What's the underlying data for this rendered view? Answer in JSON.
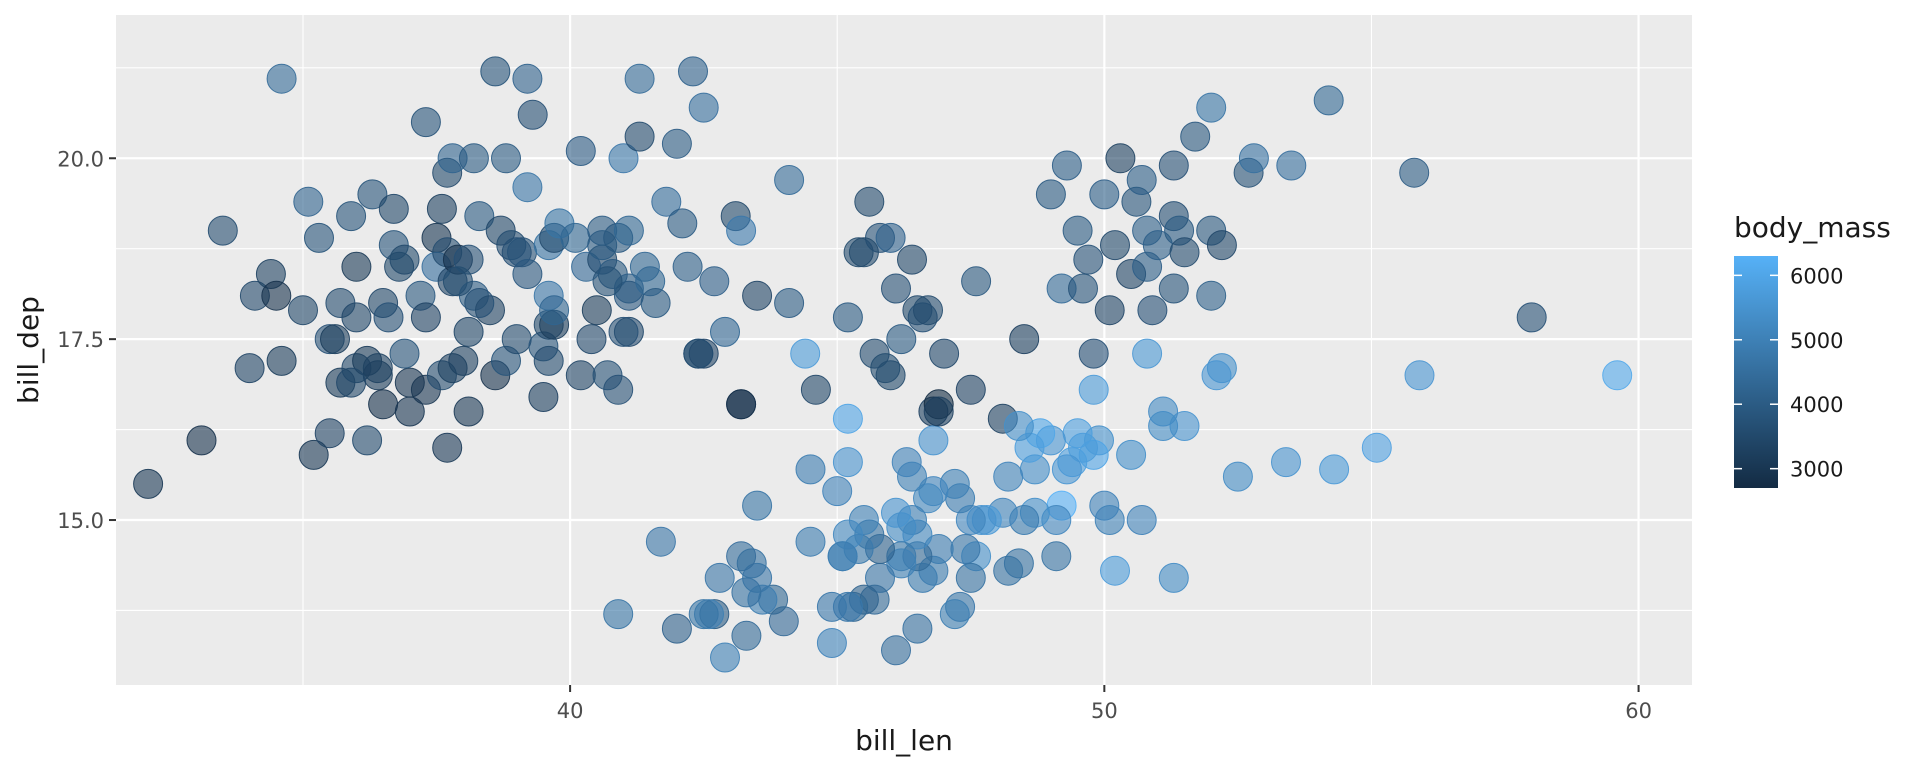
{
  "chart_data": {
    "type": "scatter",
    "xlabel": "bill_len",
    "ylabel": "bill_dep",
    "xlim": [
      31.5,
      61.0
    ],
    "ylim": [
      12.72,
      21.98
    ],
    "xticks": [
      40,
      50,
      60
    ],
    "yticks": [
      15.0,
      17.5,
      20.0
    ],
    "ytick_labels": [
      "15.0",
      "17.5",
      "20.0"
    ],
    "grid": true,
    "alpha": 0.6,
    "color_legend": {
      "title": "body_mass",
      "min": 2700,
      "max": 6300,
      "ticks": [
        3000,
        4000,
        5000,
        6000
      ],
      "low_color": "#132B43",
      "high_color": "#56B1F7",
      "placement": "right"
    },
    "points": [
      [
        32.1,
        15.5,
        3050
      ],
      [
        33.1,
        16.1,
        2900
      ],
      [
        33.5,
        19.0,
        3600
      ],
      [
        34.0,
        17.1,
        3400
      ],
      [
        34.1,
        18.1,
        3475
      ],
      [
        34.4,
        18.4,
        3325
      ],
      [
        34.5,
        18.1,
        2900
      ],
      [
        34.6,
        21.1,
        4400
      ],
      [
        34.6,
        17.2,
        3200
      ],
      [
        35.0,
        17.9,
        3450
      ],
      [
        35.1,
        19.4,
        4200
      ],
      [
        35.2,
        15.9,
        3050
      ],
      [
        35.3,
        18.9,
        3800
      ],
      [
        35.5,
        16.2,
        3350
      ],
      [
        35.5,
        17.5,
        3700
      ],
      [
        35.6,
        17.5,
        3200
      ],
      [
        35.7,
        18.0,
        3550
      ],
      [
        35.7,
        16.9,
        3150
      ],
      [
        35.9,
        19.2,
        3800
      ],
      [
        36.0,
        17.1,
        3450
      ],
      [
        36.0,
        18.5,
        3100
      ],
      [
        36.0,
        17.8,
        3450
      ],
      [
        36.2,
        16.1,
        3550
      ],
      [
        36.2,
        17.2,
        3150
      ],
      [
        36.3,
        19.5,
        3800
      ],
      [
        36.4,
        17.0,
        3150
      ],
      [
        36.4,
        17.1,
        3325
      ],
      [
        36.5,
        16.6,
        2850
      ],
      [
        36.5,
        18.0,
        3450
      ],
      [
        36.6,
        17.8,
        3700
      ],
      [
        36.7,
        18.8,
        3800
      ],
      [
        36.7,
        19.3,
        3450
      ],
      [
        36.8,
        18.5,
        3500
      ],
      [
        36.9,
        18.6,
        3500
      ],
      [
        37.0,
        16.9,
        3000
      ],
      [
        37.0,
        16.5,
        3000
      ],
      [
        37.2,
        18.1,
        3900
      ],
      [
        37.3,
        17.8,
        3350
      ],
      [
        37.3,
        16.8,
        3000
      ],
      [
        37.3,
        20.5,
        3775
      ],
      [
        37.5,
        18.9,
        2975
      ],
      [
        37.5,
        18.5,
        4475
      ],
      [
        37.6,
        19.3,
        3300
      ],
      [
        37.6,
        17.0,
        3600
      ],
      [
        37.7,
        18.7,
        3600
      ],
      [
        37.7,
        19.8,
        3500
      ],
      [
        37.7,
        16.0,
        3075
      ],
      [
        37.8,
        18.3,
        3400
      ],
      [
        37.8,
        20.0,
        4200
      ],
      [
        37.8,
        17.1,
        3300
      ],
      [
        37.9,
        18.6,
        2900
      ],
      [
        38.1,
        18.6,
        3700
      ],
      [
        38.1,
        17.6,
        3425
      ],
      [
        38.1,
        16.5,
        3050
      ],
      [
        38.2,
        18.1,
        3950
      ],
      [
        38.2,
        20.0,
        3950
      ],
      [
        38.3,
        19.2,
        3950
      ],
      [
        38.5,
        17.9,
        3325
      ],
      [
        38.6,
        21.2,
        3800
      ],
      [
        38.6,
        17.0,
        2900
      ],
      [
        38.7,
        19.0,
        3450
      ],
      [
        38.8,
        17.2,
        3800
      ],
      [
        38.8,
        20.0,
        3950
      ],
      [
        38.9,
        18.8,
        3600
      ],
      [
        39.0,
        17.5,
        3550
      ],
      [
        39.0,
        18.7,
        3650
      ],
      [
        39.1,
        18.7,
        3750
      ],
      [
        39.2,
        21.1,
        4150
      ],
      [
        39.2,
        19.6,
        4675
      ],
      [
        39.3,
        20.6,
        3650
      ],
      [
        39.5,
        17.4,
        3800
      ],
      [
        39.5,
        16.7,
        3250
      ],
      [
        39.6,
        18.8,
        4600
      ],
      [
        39.6,
        17.7,
        3500
      ],
      [
        39.6,
        18.1,
        4675
      ],
      [
        39.7,
        17.7,
        3200
      ],
      [
        39.7,
        18.9,
        3550
      ],
      [
        39.7,
        17.9,
        4250
      ],
      [
        39.8,
        19.1,
        4650
      ],
      [
        40.1,
        18.9,
        4300
      ],
      [
        40.2,
        20.1,
        3975
      ],
      [
        40.2,
        17.0,
        3400
      ],
      [
        40.3,
        18.5,
        4350
      ],
      [
        40.5,
        17.9,
        3200
      ],
      [
        40.6,
        18.6,
        3550
      ],
      [
        40.6,
        19.0,
        4000
      ],
      [
        40.6,
        18.8,
        3950
      ],
      [
        40.7,
        17.0,
        3725
      ],
      [
        40.8,
        18.4,
        3900
      ],
      [
        40.9,
        16.8,
        3700
      ],
      [
        40.9,
        18.9,
        3900
      ],
      [
        41.0,
        20.0,
        4725
      ],
      [
        41.1,
        18.2,
        4050
      ],
      [
        41.1,
        17.6,
        3475
      ],
      [
        41.1,
        19.0,
        4300
      ],
      [
        41.1,
        18.1,
        3875
      ],
      [
        41.3,
        20.3,
        3550
      ],
      [
        41.3,
        21.1,
        4400
      ],
      [
        41.4,
        18.5,
        4300
      ],
      [
        41.5,
        18.3,
        4300
      ],
      [
        41.6,
        18.0,
        3950
      ],
      [
        41.8,
        19.4,
        4450
      ],
      [
        42.0,
        20.2,
        4000
      ],
      [
        42.1,
        19.1,
        4000
      ],
      [
        42.2,
        18.5,
        4100
      ],
      [
        42.3,
        21.2,
        4150
      ],
      [
        42.4,
        17.3,
        3600
      ],
      [
        42.5,
        20.7,
        4500
      ],
      [
        42.5,
        17.3,
        3350
      ],
      [
        42.7,
        18.3,
        4075
      ],
      [
        42.9,
        17.6,
        4275
      ],
      [
        43.1,
        19.2,
        3500
      ],
      [
        43.2,
        16.6,
        2900
      ],
      [
        43.2,
        19.0,
        4775
      ],
      [
        43.5,
        18.1,
        3400
      ],
      [
        44.1,
        19.7,
        4400
      ],
      [
        44.1,
        18.0,
        4000
      ],
      [
        45.2,
        17.8,
        3950
      ],
      [
        45.4,
        18.7,
        3525
      ],
      [
        45.6,
        19.4,
        3525
      ],
      [
        45.7,
        17.3,
        3600
      ],
      [
        45.8,
        18.9,
        3750
      ],
      [
        46.0,
        18.9,
        4150
      ],
      [
        46.1,
        18.2,
        3700
      ],
      [
        46.2,
        17.5,
        3950
      ],
      [
        46.4,
        18.6,
        3450
      ],
      [
        46.5,
        17.9,
        3500
      ],
      [
        46.6,
        17.8,
        3700
      ],
      [
        46.7,
        17.9,
        3550
      ],
      [
        46.8,
        16.5,
        3250
      ],
      [
        46.9,
        16.6,
        2700
      ],
      [
        47.0,
        17.3,
        3475
      ],
      [
        47.5,
        16.8,
        3350
      ],
      [
        47.6,
        18.3,
        3900
      ],
      [
        48.1,
        16.4,
        3325
      ],
      [
        48.5,
        17.5,
        3250
      ],
      [
        49.0,
        19.5,
        3950
      ],
      [
        49.2,
        18.2,
        4400
      ],
      [
        49.3,
        19.9,
        4050
      ],
      [
        49.5,
        19.0,
        3950
      ],
      [
        49.6,
        18.2,
        3775
      ],
      [
        49.7,
        18.6,
        3750
      ],
      [
        49.8,
        17.3,
        3675
      ],
      [
        50.0,
        19.5,
        4050
      ],
      [
        50.1,
        17.9,
        3400
      ],
      [
        50.2,
        18.8,
        3500
      ],
      [
        50.3,
        20.0,
        3300
      ],
      [
        50.5,
        18.4,
        3400
      ],
      [
        50.6,
        19.4,
        3800
      ],
      [
        50.7,
        19.7,
        4050
      ],
      [
        50.8,
        18.5,
        4050
      ],
      [
        50.8,
        19.0,
        4100
      ],
      [
        50.9,
        17.9,
        3675
      ],
      [
        51.0,
        18.8,
        4100
      ],
      [
        51.3,
        19.2,
        3650
      ],
      [
        51.3,
        19.9,
        3700
      ],
      [
        51.3,
        18.2,
        3775
      ],
      [
        51.4,
        19.0,
        3950
      ],
      [
        51.5,
        18.7,
        3550
      ],
      [
        51.7,
        20.3,
        3900
      ],
      [
        52.0,
        18.1,
        4125
      ],
      [
        52.0,
        19.0,
        3900
      ],
      [
        52.0,
        20.7,
        4650
      ],
      [
        52.2,
        18.8,
        3450
      ],
      [
        52.7,
        19.8,
        3725
      ],
      [
        52.8,
        20.0,
        4550
      ],
      [
        53.5,
        19.9,
        4500
      ],
      [
        54.2,
        20.8,
        4300
      ],
      [
        55.8,
        19.8,
        4000
      ],
      [
        58.0,
        17.8,
        3700
      ],
      [
        59.6,
        17.0,
        6050
      ],
      [
        55.9,
        17.0,
        5550
      ],
      [
        55.1,
        16.0,
        5850
      ],
      [
        54.3,
        15.7,
        5650
      ],
      [
        53.4,
        15.8,
        5500
      ],
      [
        52.5,
        15.6,
        5300
      ],
      [
        52.2,
        17.1,
        5400
      ],
      [
        52.1,
        17.0,
        5550
      ],
      [
        51.5,
        16.3,
        5500
      ],
      [
        51.3,
        14.2,
        5300
      ],
      [
        51.1,
        16.5,
        5250
      ],
      [
        51.1,
        16.3,
        5300
      ],
      [
        50.8,
        17.3,
        5600
      ],
      [
        50.7,
        15.0,
        5050
      ],
      [
        50.5,
        15.9,
        5400
      ],
      [
        50.2,
        14.3,
        5700
      ],
      [
        50.1,
        15.0,
        5000
      ],
      [
        50.0,
        15.2,
        5050
      ],
      [
        49.9,
        16.1,
        5400
      ],
      [
        49.8,
        15.9,
        5950
      ],
      [
        49.8,
        16.8,
        5700
      ],
      [
        49.6,
        16.0,
        5700
      ],
      [
        49.5,
        16.2,
        5800
      ],
      [
        49.4,
        15.8,
        5800
      ],
      [
        49.3,
        15.7,
        5550
      ],
      [
        49.2,
        15.2,
        6300
      ],
      [
        49.1,
        14.5,
        4625
      ],
      [
        49.1,
        15.0,
        5150
      ],
      [
        49.0,
        16.1,
        5550
      ],
      [
        48.8,
        16.2,
        6000
      ],
      [
        48.7,
        15.7,
        5350
      ],
      [
        48.7,
        15.1,
        5400
      ],
      [
        48.6,
        16.0,
        5800
      ],
      [
        48.5,
        15.0,
        4850
      ],
      [
        48.4,
        14.4,
        4600
      ],
      [
        48.4,
        16.3,
        5400
      ],
      [
        48.2,
        15.6,
        5100
      ],
      [
        48.2,
        14.3,
        4600
      ],
      [
        48.1,
        15.1,
        5100
      ],
      [
        47.8,
        15.0,
        5650
      ],
      [
        47.7,
        15.0,
        5500
      ],
      [
        47.6,
        14.5,
        5400
      ],
      [
        47.5,
        14.2,
        4600
      ],
      [
        47.5,
        15.0,
        5150
      ],
      [
        47.4,
        14.6,
        4725
      ],
      [
        47.3,
        15.3,
        4875
      ],
      [
        47.3,
        13.8,
        4725
      ],
      [
        47.2,
        15.5,
        4975
      ],
      [
        47.2,
        13.7,
        4925
      ],
      [
        46.9,
        14.6,
        4875
      ],
      [
        46.8,
        15.4,
        5150
      ],
      [
        46.8,
        14.3,
        4850
      ],
      [
        46.8,
        16.1,
        5500
      ],
      [
        46.7,
        15.3,
        5200
      ],
      [
        46.6,
        14.2,
        4850
      ],
      [
        46.5,
        14.5,
        4400
      ],
      [
        46.5,
        14.8,
        5200
      ],
      [
        46.5,
        13.5,
        4550
      ],
      [
        46.4,
        15.6,
        5000
      ],
      [
        46.4,
        15.0,
        4975
      ],
      [
        46.3,
        15.8,
        5050
      ],
      [
        46.2,
        14.9,
        5300
      ],
      [
        46.2,
        14.5,
        4800
      ],
      [
        46.2,
        14.4,
        5000
      ],
      [
        46.1,
        13.2,
        4500
      ],
      [
        46.1,
        15.1,
        5500
      ],
      [
        45.8,
        14.2,
        4700
      ],
      [
        45.8,
        14.6,
        4200
      ],
      [
        45.7,
        13.9,
        4400
      ],
      [
        45.6,
        14.8,
        4600
      ],
      [
        45.5,
        13.9,
        4200
      ],
      [
        45.5,
        15.0,
        5000
      ],
      [
        45.4,
        14.6,
        4800
      ],
      [
        45.3,
        13.8,
        4300
      ],
      [
        45.2,
        13.8,
        4750
      ],
      [
        45.2,
        14.8,
        5200
      ],
      [
        45.2,
        16.4,
        5950
      ],
      [
        45.2,
        15.8,
        5500
      ],
      [
        45.1,
        14.5,
        5000
      ],
      [
        45.1,
        14.5,
        4900
      ],
      [
        45.0,
        15.4,
        5050
      ],
      [
        44.9,
        13.3,
        5100
      ],
      [
        44.9,
        13.8,
        4750
      ],
      [
        44.5,
        14.7,
        4850
      ],
      [
        44.5,
        15.7,
        4875
      ],
      [
        44.4,
        17.3,
        5700
      ],
      [
        44.0,
        13.6,
        4350
      ],
      [
        43.8,
        13.9,
        4300
      ],
      [
        43.6,
        13.9,
        4900
      ],
      [
        43.5,
        14.2,
        4700
      ],
      [
        43.5,
        15.2,
        4650
      ],
      [
        43.4,
        14.4,
        4600
      ],
      [
        43.3,
        14.0,
        4575
      ],
      [
        43.3,
        13.4,
        4400
      ],
      [
        43.2,
        14.5,
        4450
      ],
      [
        42.9,
        13.1,
        5000
      ],
      [
        42.8,
        14.2,
        4700
      ],
      [
        42.7,
        13.7,
        3950
      ],
      [
        42.6,
        13.7,
        4950
      ],
      [
        42.5,
        13.7,
        4650
      ],
      [
        42.0,
        13.5,
        4150
      ],
      [
        41.7,
        14.7,
        4700
      ],
      [
        40.9,
        13.7,
        4650
      ],
      [
        42.4,
        17.3,
        3600
      ],
      [
        43.2,
        16.6,
        2900
      ],
      [
        46.0,
        17.0,
        3500
      ],
      [
        45.5,
        18.7,
        3525
      ],
      [
        44.6,
        16.8,
        3450
      ],
      [
        45.9,
        17.1,
        3575
      ],
      [
        46.9,
        16.5,
        3250
      ],
      [
        38.3,
        18.0,
        3700
      ],
      [
        39.2,
        18.4,
        3875
      ],
      [
        40.4,
        17.5,
        3475
      ],
      [
        37.9,
        18.3,
        3575
      ],
      [
        36.9,
        17.3,
        3800
      ],
      [
        39.6,
        17.2,
        3550
      ],
      [
        35.9,
        16.9,
        3450
      ],
      [
        40.7,
        18.3,
        3725
      ],
      [
        38.0,
        17.2,
        3300
      ],
      [
        41.0,
        17.6,
        3700
      ]
    ]
  }
}
